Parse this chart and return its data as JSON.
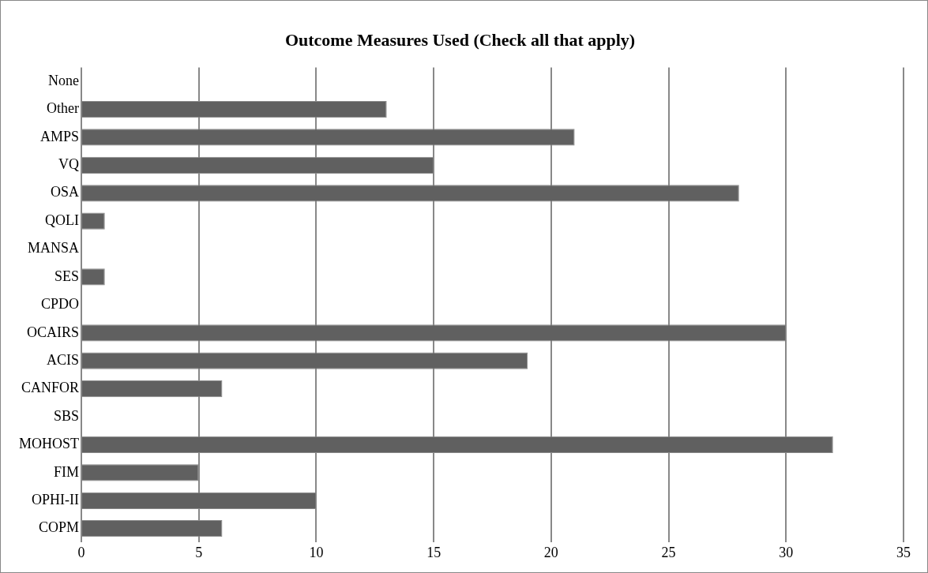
{
  "chart_data": {
    "type": "bar",
    "orientation": "horizontal",
    "title": "Outcome Measures Used (Check all that apply)",
    "categories": [
      "None",
      "Other",
      "AMPS",
      "VQ",
      "OSA",
      "QOLI",
      "MANSA",
      "SES",
      "CPDO",
      "OCAIRS",
      "ACIS",
      "CANFOR",
      "SBS",
      "MOHOST",
      "FIM",
      "OPHI-II",
      "COPM"
    ],
    "values": [
      0,
      13,
      21,
      15,
      28,
      1,
      0,
      1,
      0,
      30,
      19,
      6,
      0,
      32,
      5,
      10,
      6
    ],
    "color": "#606060",
    "xlim": [
      0,
      35
    ],
    "xticks": [
      0,
      5,
      10,
      15,
      20,
      25,
      30,
      35
    ],
    "grid": "x",
    "legend": false
  }
}
